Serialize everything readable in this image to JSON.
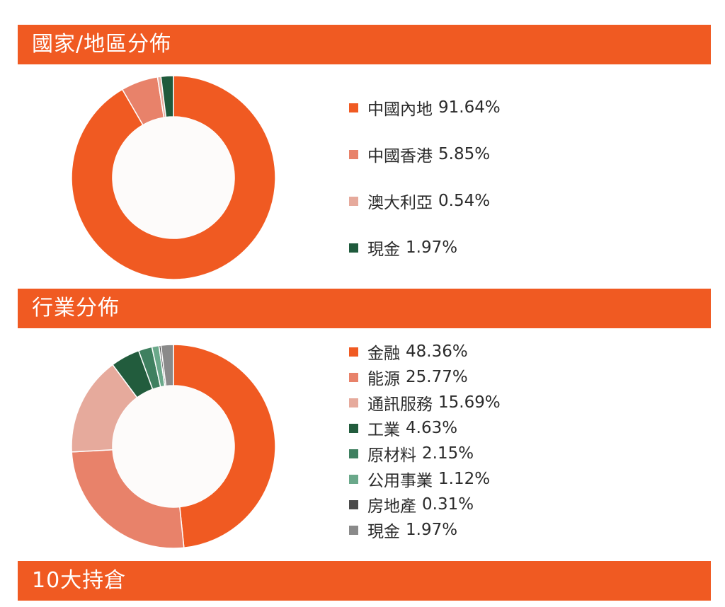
{
  "sections": {
    "geo_title": "國家/地區分佈",
    "industry_title": "行業分佈",
    "top10_title": "10大持倉"
  },
  "chart_data": [
    {
      "type": "pie",
      "title": "國家/地區分佈",
      "donut": true,
      "legend_position": "right",
      "slices": [
        {
          "label": "中國內地",
          "value": 91.64,
          "display": "91.64%",
          "color": "#f05a22"
        },
        {
          "label": "中國香港",
          "value": 5.85,
          "display": "5.85%",
          "color": "#e8826a"
        },
        {
          "label": "澳大利亞",
          "value": 0.54,
          "display": "0.54%",
          "color": "#e6aa9c"
        },
        {
          "label": "現金",
          "value": 1.97,
          "display": "1.97%",
          "color": "#1f5a3c"
        }
      ]
    },
    {
      "type": "pie",
      "title": "行業分佈",
      "donut": true,
      "legend_position": "right",
      "slices": [
        {
          "label": "金融",
          "value": 48.36,
          "display": "48.36%",
          "color": "#f05a22"
        },
        {
          "label": "能源",
          "value": 25.77,
          "display": "25.77%",
          "color": "#e8826a"
        },
        {
          "label": "通訊服務",
          "value": 15.69,
          "display": "15.69%",
          "color": "#e6aa9c"
        },
        {
          "label": "工業",
          "value": 4.63,
          "display": "4.63%",
          "color": "#225c3d"
        },
        {
          "label": "原材料",
          "value": 2.15,
          "display": "2.15%",
          "color": "#3f8060"
        },
        {
          "label": "公用事業",
          "value": 1.12,
          "display": "1.12%",
          "color": "#6aa88a"
        },
        {
          "label": "房地產",
          "value": 0.31,
          "display": "0.31%",
          "color": "#4a4a4a"
        },
        {
          "label": "現金",
          "value": 1.97,
          "display": "1.97%",
          "color": "#8a8a8a"
        }
      ]
    }
  ]
}
